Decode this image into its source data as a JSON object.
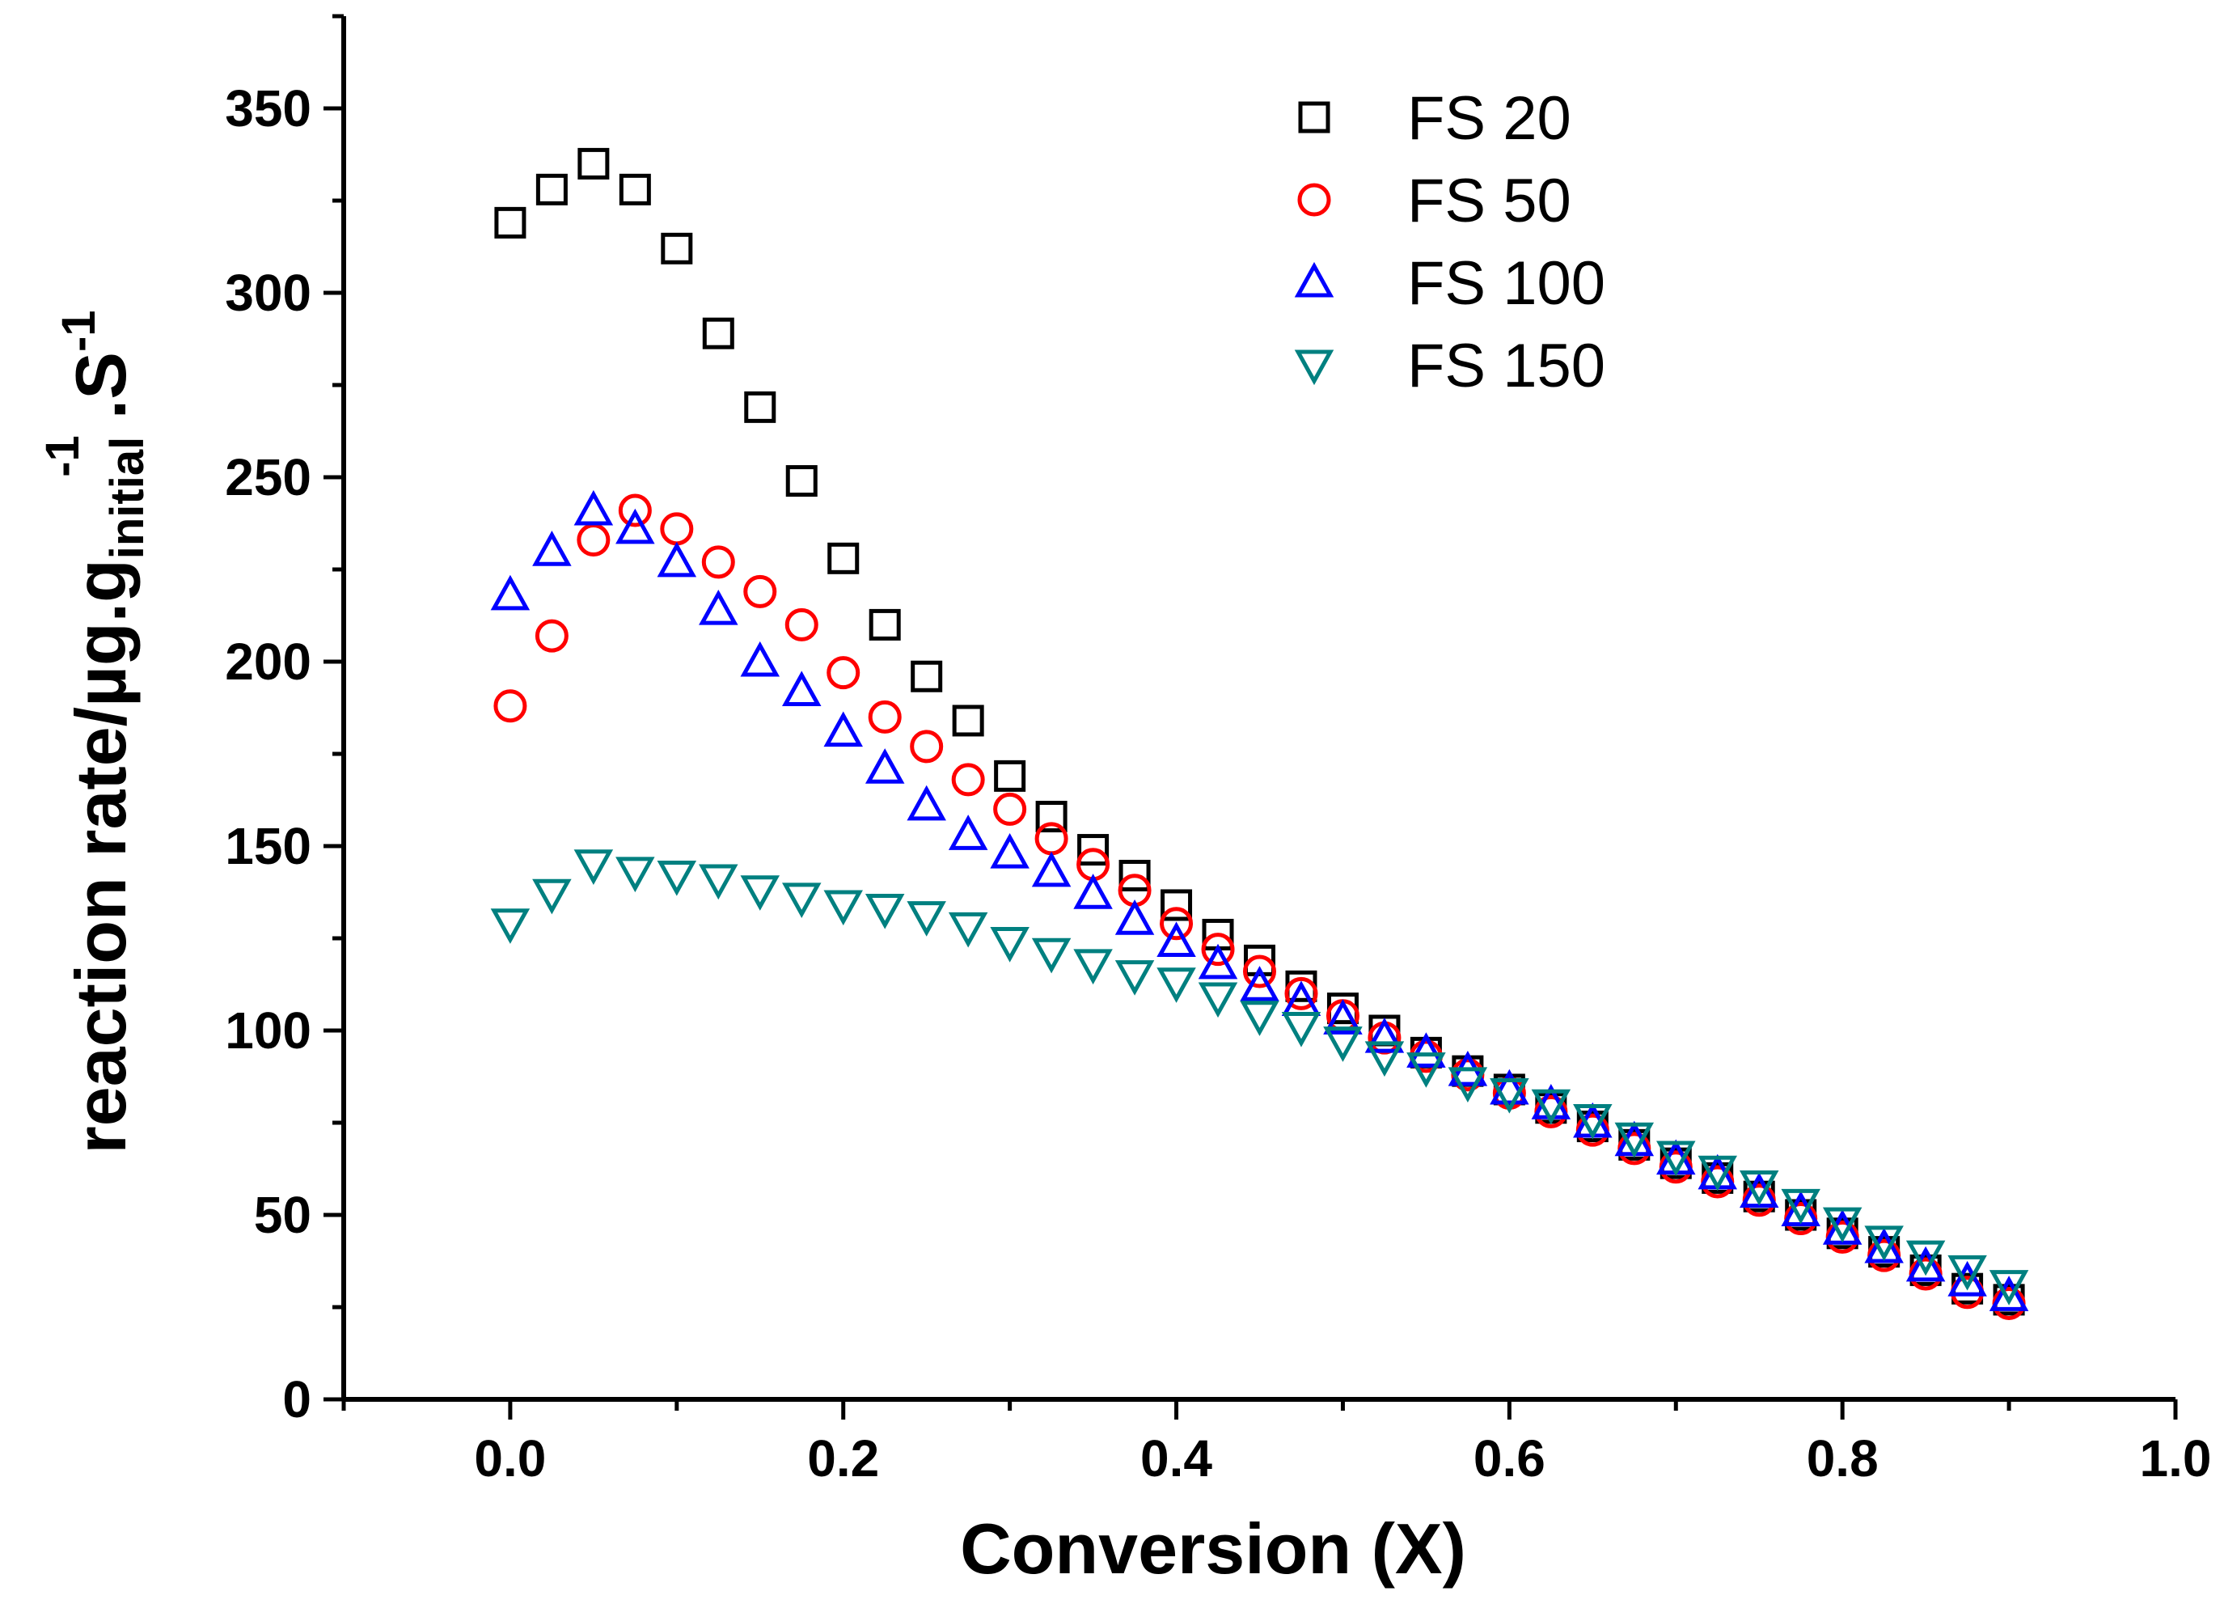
{
  "chart_data": {
    "type": "scatter",
    "xlabel": "Conversion (X)",
    "ylabel": {
      "main": "reaction rate/µg.g",
      "sub": "initial",
      "sup1": "-1",
      "mid": ".S",
      "sup2": "-1"
    },
    "xlim": [
      -0.1,
      1.0
    ],
    "ylim": [
      0,
      375
    ],
    "xticks": [
      0.0,
      0.2,
      0.4,
      0.6,
      0.8,
      1.0
    ],
    "xtick_labels": [
      "0.0",
      "0.2",
      "0.4",
      "0.6",
      "0.8",
      "1.0"
    ],
    "yticks": [
      0,
      50,
      100,
      150,
      200,
      250,
      300,
      350
    ],
    "ytick_labels": [
      "0",
      "50",
      "100",
      "150",
      "200",
      "250",
      "300",
      "350"
    ],
    "legend_position": "top-right",
    "grid": false,
    "x": [
      0.0,
      0.025,
      0.05,
      0.075,
      0.1,
      0.125,
      0.15,
      0.175,
      0.2,
      0.225,
      0.25,
      0.275,
      0.3,
      0.325,
      0.35,
      0.375,
      0.4,
      0.425,
      0.45,
      0.475,
      0.5,
      0.525,
      0.55,
      0.575,
      0.6,
      0.625,
      0.65,
      0.675,
      0.7,
      0.725,
      0.75,
      0.775,
      0.8,
      0.825,
      0.85,
      0.875,
      0.9
    ],
    "series": [
      {
        "name": "FS 20",
        "marker": "square",
        "color": "#000000",
        "values": [
          319,
          328,
          335,
          328,
          312,
          289,
          269,
          249,
          228,
          210,
          196,
          184,
          169,
          158,
          149,
          142,
          134,
          126,
          119,
          112,
          106,
          100,
          94,
          89,
          84,
          79,
          74,
          69,
          64,
          60,
          55,
          50,
          45,
          40,
          35,
          30,
          27
        ]
      },
      {
        "name": "FS 50",
        "marker": "circle",
        "color": "#ff0000",
        "values": [
          188,
          207,
          233,
          241,
          236,
          227,
          219,
          210,
          197,
          185,
          177,
          168,
          160,
          152,
          145,
          138,
          129,
          122,
          116,
          110,
          104,
          98,
          93,
          88,
          83,
          78,
          73,
          68,
          63,
          59,
          54,
          49,
          44,
          39,
          34,
          29,
          26
        ]
      },
      {
        "name": "FS 100",
        "marker": "triangle-up",
        "color": "#0000ff",
        "values": [
          218,
          230,
          241,
          236,
          227,
          214,
          200,
          192,
          181,
          171,
          161,
          153,
          148,
          143,
          137,
          130,
          124,
          118,
          112,
          108,
          103,
          98,
          94,
          89,
          84,
          80,
          75,
          70,
          65,
          61,
          56,
          51,
          46,
          41,
          36,
          32,
          28
        ]
      },
      {
        "name": "FS 150",
        "marker": "triangle-down",
        "color": "#008080",
        "values": [
          129,
          137,
          145,
          143,
          142,
          141,
          138,
          136,
          134,
          133,
          131,
          128,
          124,
          121,
          118,
          115,
          113,
          109,
          104,
          101,
          97,
          93,
          90,
          86,
          83,
          80,
          76,
          71,
          66,
          62,
          58,
          53,
          48,
          43,
          39,
          35,
          31
        ]
      }
    ]
  }
}
